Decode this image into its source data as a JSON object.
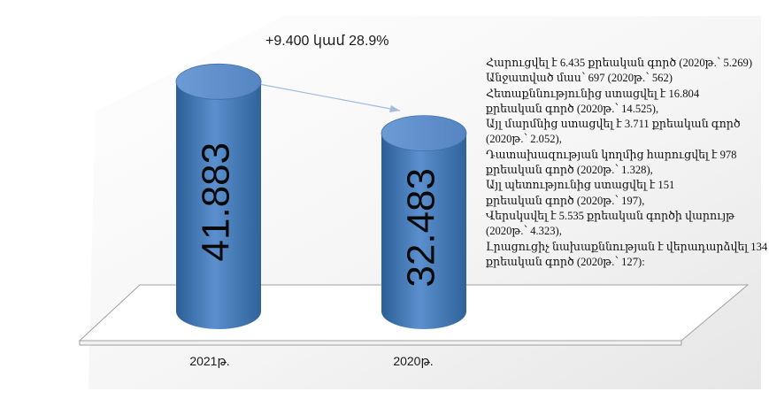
{
  "chart_data": {
    "type": "bar",
    "categories": [
      "2021թ.",
      "2020թ."
    ],
    "values": [
      41.883,
      32.483
    ],
    "value_labels": [
      "41.883",
      "32.483"
    ],
    "title": "",
    "xlabel": "",
    "ylabel": "",
    "ylim": [
      0,
      45
    ],
    "grid": false,
    "legend": "none",
    "bar_color": "#4a7ebb",
    "change_annotation": "+9.400 կամ 28.9%",
    "notes": [
      "Հարուցվել է 6.435 քրեական գործ (2020թ.՝ 5.269)",
      "Անջատված մաս՝ 697 (2020թ.՝ 562)",
      "Հետաքննությունից ստացվել է 16.804",
      "քրեական գործ (2020թ.՝ 14.525),",
      "Այլ մարմնից ստացվել է 3.711 քրեական գործ",
      "(2020թ.՝ 2.052),",
      "Դատախազության կողմից հարուցվել է 978",
      "քրեական գործ (2020թ.՝ 1.328),",
      "Այլ պետությունից ստացվել է 151",
      "քրեական գործ (2020թ.՝ 197),",
      "Վերսկսվել է 5.535 քրեական գործի վարույթ",
      "(2020թ.՝ 4.323),",
      "Լրացուցիչ նախաքննության է վերադարձվել 134",
      "քրեական գործ (2020թ.՝ 127):"
    ]
  }
}
